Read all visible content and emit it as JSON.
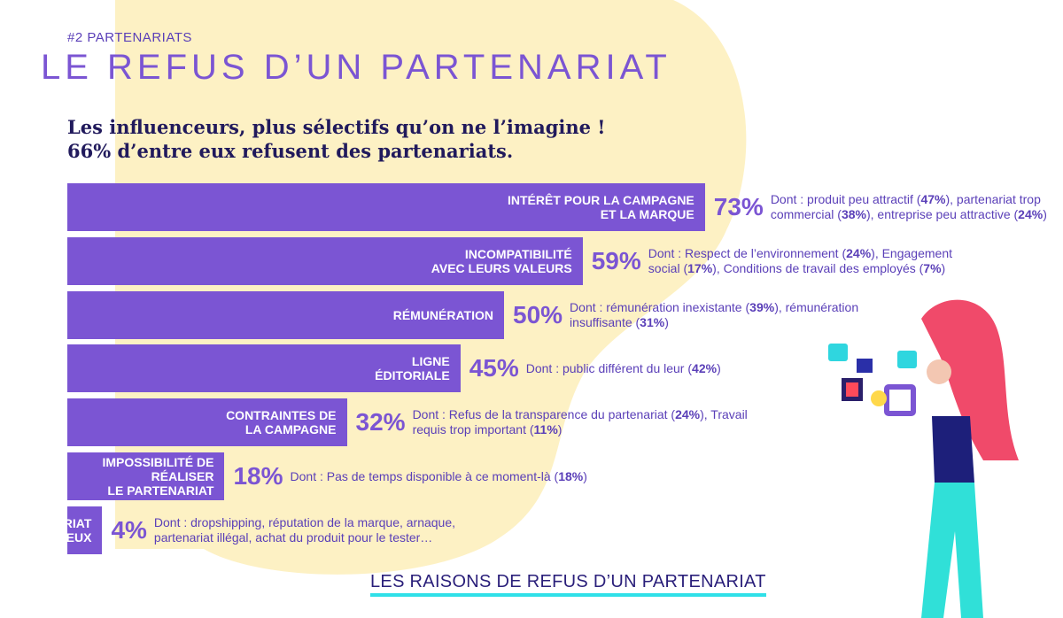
{
  "header": {
    "kicker": "#2 PARTENARIATS",
    "title": "LE REFUS D’UN PARTENARIAT",
    "subtitle": "Les influenceurs, plus sélectifs qu’on ne l’imagine !\n66% d’entre eux refusent des partenariats."
  },
  "chart_data": {
    "type": "bar",
    "orientation": "horizontal",
    "color": "#7b55d3",
    "xlim": [
      0,
      100
    ],
    "categories": [
      "INTÉRÊT POUR LA CAMPAGNE\nET LA MARQUE",
      "INCOMPATIBILITÉ\nAVEC LEURS VALEURS",
      "RÉMUNÉRATION",
      "LIGNE\nÉDITORIALE",
      "CONTRAINTES DE\nLA CAMPAGNE",
      "IMPOSSIBILITÉ DE\nRÉALISER\nLE PARTENARIAT",
      "PARTENARIAT\nDOUTEUX"
    ],
    "values": [
      73,
      59,
      50,
      45,
      32,
      18,
      4
    ],
    "value_labels": [
      "73%",
      "59%",
      "50%",
      "45%",
      "32%",
      "18%",
      "4%"
    ],
    "details": [
      "Dont : produit peu attractif (47%), partenariat trop commercial (38%), entreprise peu attractive (24%)",
      "Dont : Respect de l’environnement (24%), Engagement social (17%), Conditions de travail des employés (7%)",
      "Dont : rémunération inexistante (39%), rémunération insuffisante (31%)",
      "Dont : public différent du leur (42%)",
      "Dont : Refus de la transparence du partenariat (24%), Travail requis trop important (11%)",
      "Dont : Pas de temps disponible à ce moment-là (18%)",
      "Dont : dropshipping, réputation de la marque, arnaque, partenariat illégal, achat du produit pour le tester…"
    ],
    "caption": "LES RAISONS DE REFUS D’UN PARTENARIAT"
  }
}
